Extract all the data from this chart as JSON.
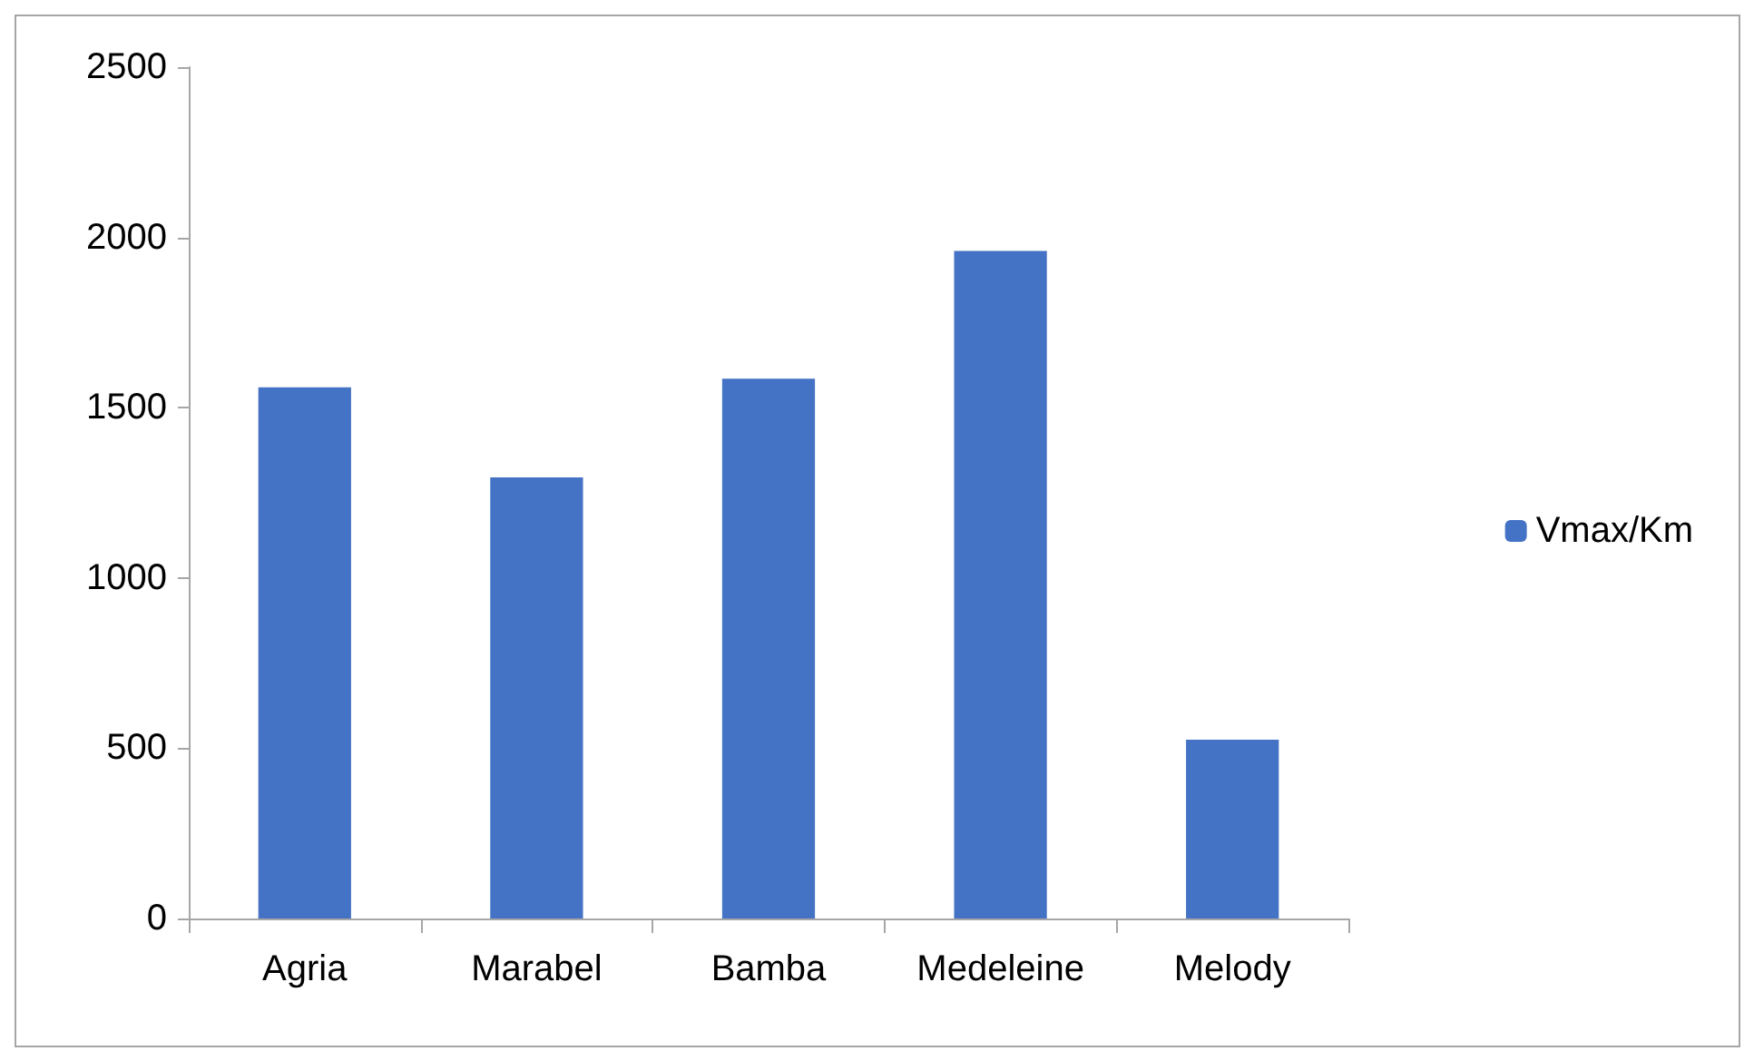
{
  "chart_data": {
    "type": "bar",
    "categories": [
      "Agria",
      "Marabel",
      "Bamba",
      "Medeleine",
      "Melody"
    ],
    "series": [
      {
        "name": "Vmax/Km",
        "color": "#4472c4",
        "values": [
          1560,
          1295,
          1585,
          1960,
          525
        ]
      }
    ],
    "ylim": [
      0,
      2500
    ],
    "yticks": [
      0,
      500,
      1000,
      1500,
      2000,
      2500
    ],
    "grid": false,
    "legend": "right"
  }
}
